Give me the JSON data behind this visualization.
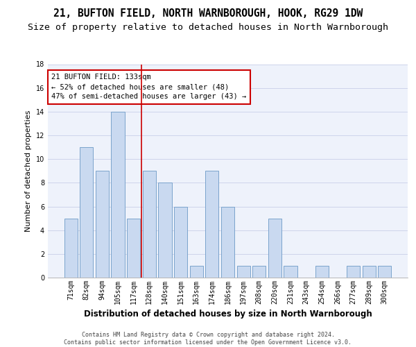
{
  "title": "21, BUFTON FIELD, NORTH WARNBOROUGH, HOOK, RG29 1DW",
  "subtitle": "Size of property relative to detached houses in North Warnborough",
  "xlabel": "Distribution of detached houses by size in North Warnborough",
  "ylabel": "Number of detached properties",
  "categories": [
    "71sqm",
    "82sqm",
    "94sqm",
    "105sqm",
    "117sqm",
    "128sqm",
    "140sqm",
    "151sqm",
    "163sqm",
    "174sqm",
    "186sqm",
    "197sqm",
    "208sqm",
    "220sqm",
    "231sqm",
    "243sqm",
    "254sqm",
    "266sqm",
    "277sqm",
    "289sqm",
    "300sqm"
  ],
  "values": [
    5,
    11,
    9,
    14,
    5,
    9,
    8,
    6,
    1,
    9,
    6,
    1,
    1,
    5,
    1,
    0,
    1,
    0,
    1,
    1,
    1
  ],
  "bar_color": "#c9d9f0",
  "bar_edge_color": "#7aa3cc",
  "red_line_x": 4.5,
  "annotation_box_text": "21 BUFTON FIELD: 133sqm\n← 52% of detached houses are smaller (48)\n47% of semi-detached houses are larger (43) →",
  "annotation_box_color": "#cc0000",
  "ylim": [
    0,
    18
  ],
  "yticks": [
    0,
    2,
    4,
    6,
    8,
    10,
    12,
    14,
    16,
    18
  ],
  "footer_text": "Contains HM Land Registry data © Crown copyright and database right 2024.\nContains public sector information licensed under the Open Government Licence v3.0.",
  "bg_color": "#eef2fb",
  "grid_color": "#c8cfe8",
  "title_fontsize": 10.5,
  "subtitle_fontsize": 9.5,
  "xlabel_fontsize": 8.5,
  "ylabel_fontsize": 8.0,
  "tick_fontsize": 7.0,
  "annotation_fontsize": 7.5,
  "footer_fontsize": 6.0
}
